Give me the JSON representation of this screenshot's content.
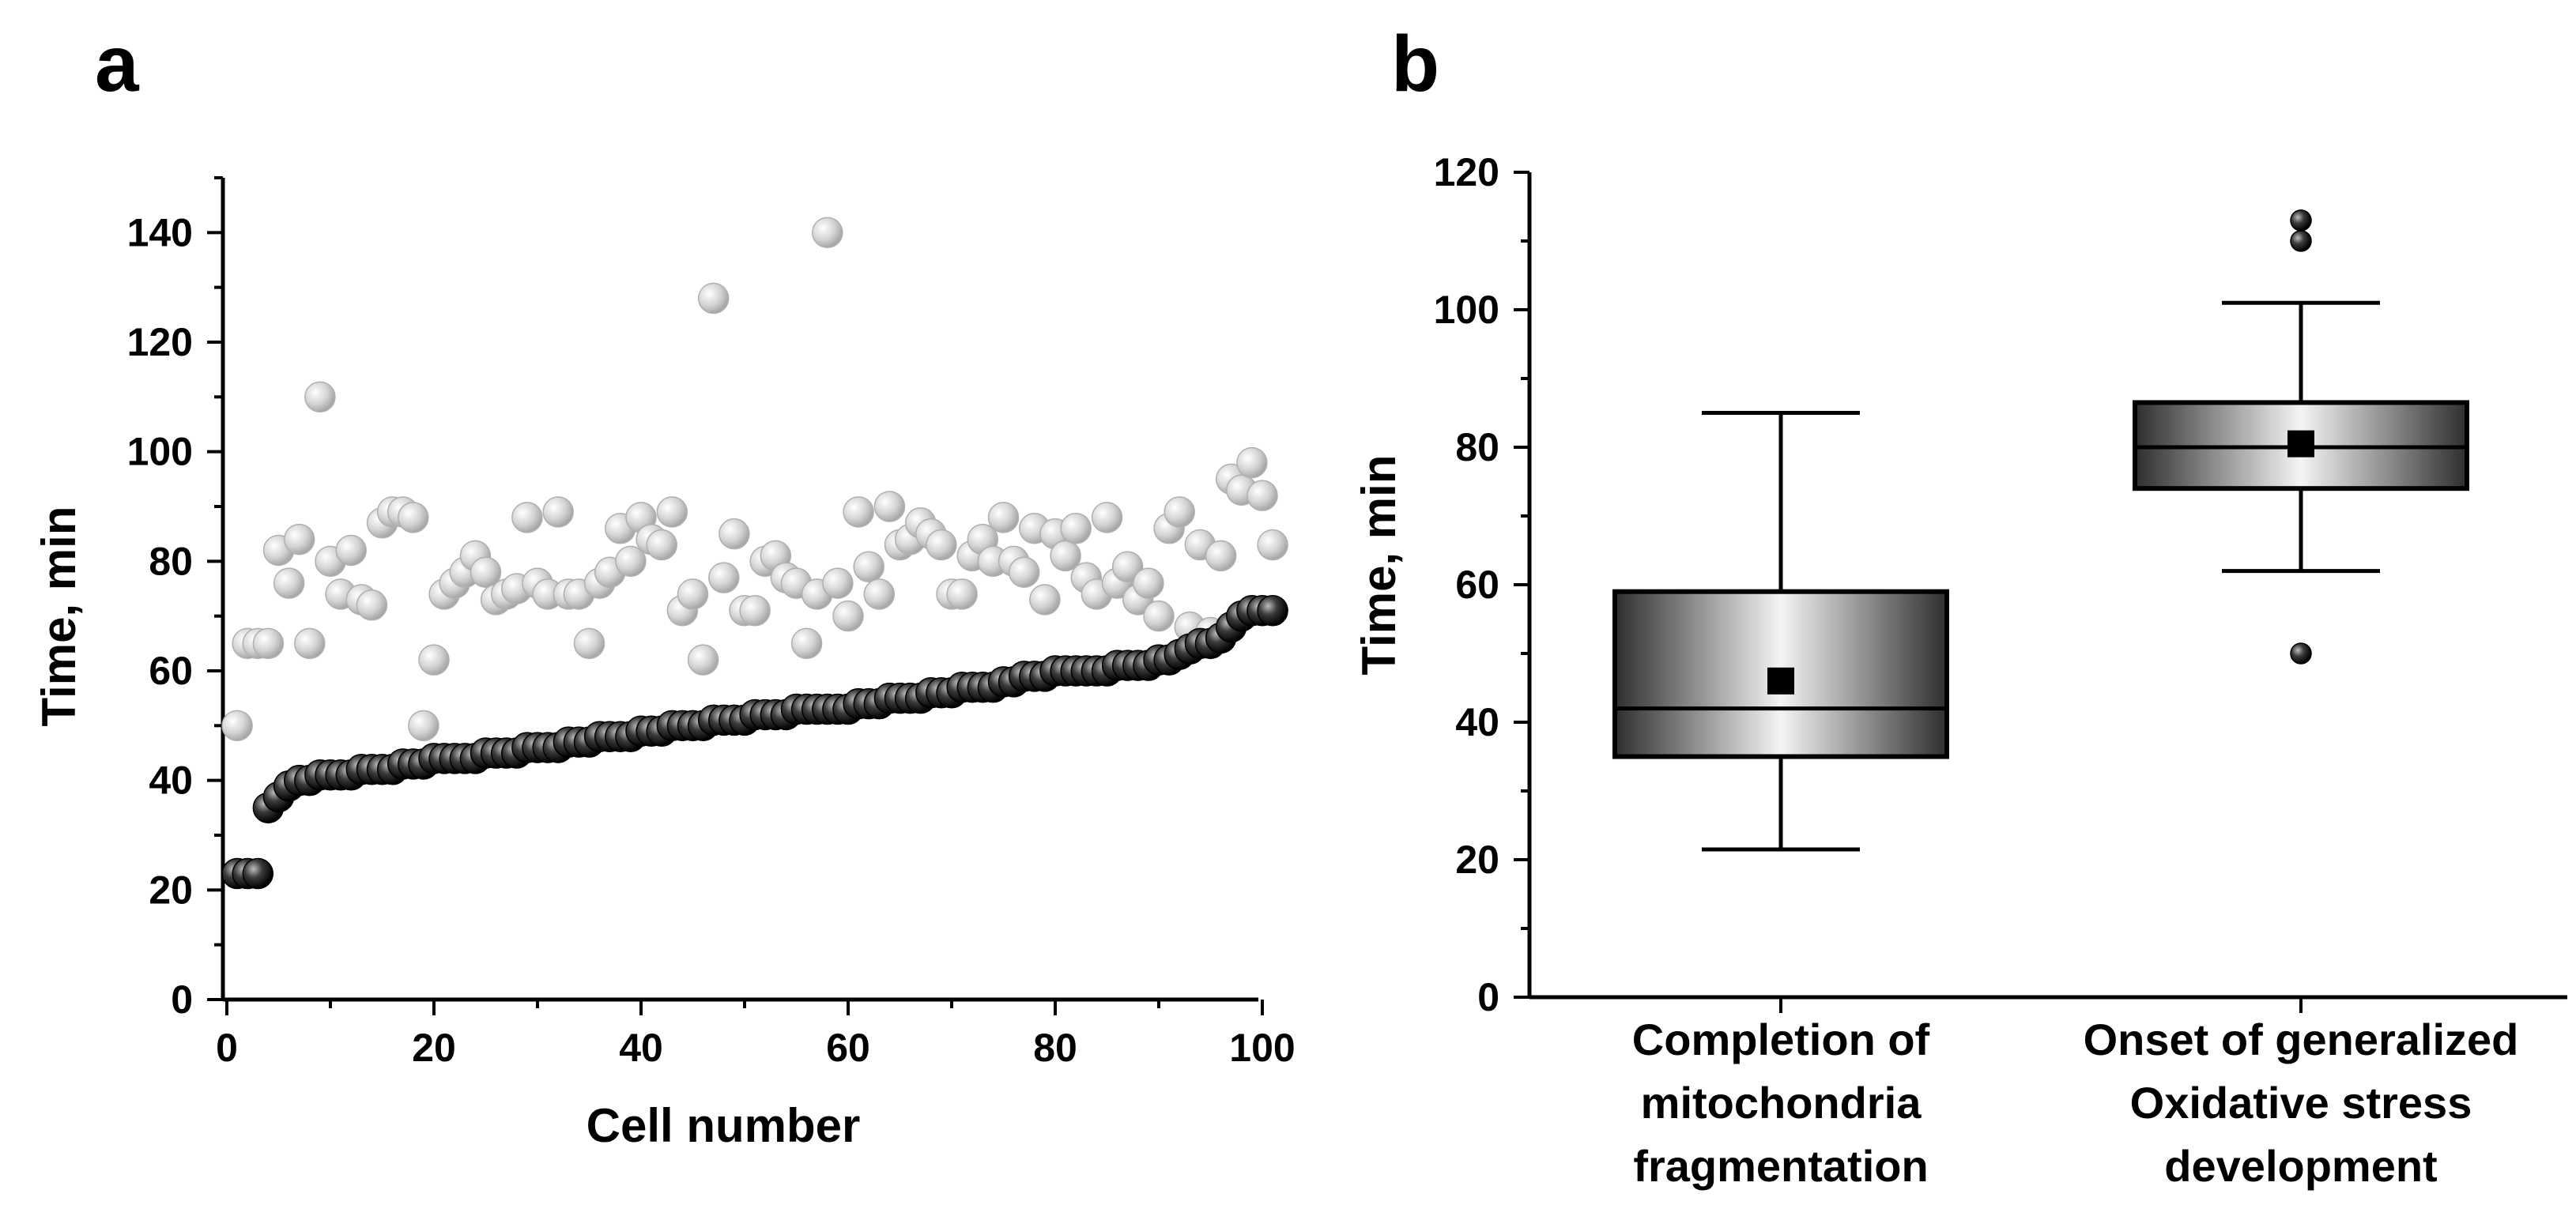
{
  "colors": {
    "sorted_series": "#222222",
    "unsorted_series": "#c8c8c8",
    "axis": "#000000",
    "box_dark": "#3a3a3a",
    "box_light": "#f2f2f2"
  },
  "panels": {
    "a": {
      "letter": "a"
    },
    "b": {
      "letter": "b"
    }
  },
  "chart_data": [
    {
      "type": "scatter",
      "panel": "a",
      "xlabel": "Cell number",
      "ylabel": "Time, min",
      "xlim": [
        0,
        100
      ],
      "ylim": [
        0,
        150
      ],
      "xticks": [
        0,
        20,
        40,
        60,
        80,
        100
      ],
      "yticks": [
        0,
        20,
        40,
        60,
        80,
        100,
        120,
        140
      ],
      "grid": false,
      "legend": "none",
      "series": [
        {
          "marker_color": "#c8c8c8",
          "points": [
            [
              1,
              50
            ],
            [
              2,
              65
            ],
            [
              3,
              65
            ],
            [
              4,
              65
            ],
            [
              5,
              82
            ],
            [
              6,
              76
            ],
            [
              7,
              84
            ],
            [
              8,
              65
            ],
            [
              9,
              110
            ],
            [
              10,
              80
            ],
            [
              11,
              74
            ],
            [
              12,
              82
            ],
            [
              13,
              73
            ],
            [
              14,
              72
            ],
            [
              15,
              87
            ],
            [
              16,
              89
            ],
            [
              17,
              89
            ],
            [
              18,
              88
            ],
            [
              19,
              50
            ],
            [
              20,
              62
            ],
            [
              21,
              74
            ],
            [
              22,
              76
            ],
            [
              23,
              78
            ],
            [
              24,
              81
            ],
            [
              25,
              78
            ],
            [
              26,
              73
            ],
            [
              27,
              74
            ],
            [
              28,
              75
            ],
            [
              29,
              88
            ],
            [
              30,
              76
            ],
            [
              31,
              74
            ],
            [
              32,
              89
            ],
            [
              33,
              74
            ],
            [
              34,
              74
            ],
            [
              35,
              65
            ],
            [
              36,
              76
            ],
            [
              37,
              78
            ],
            [
              38,
              86
            ],
            [
              39,
              80
            ],
            [
              40,
              88
            ],
            [
              41,
              84
            ],
            [
              42,
              83
            ],
            [
              43,
              89
            ],
            [
              44,
              71
            ],
            [
              45,
              74
            ],
            [
              46,
              62
            ],
            [
              47,
              128
            ],
            [
              48,
              77
            ],
            [
              49,
              85
            ],
            [
              50,
              71
            ],
            [
              51,
              71
            ],
            [
              52,
              80
            ],
            [
              53,
              81
            ],
            [
              54,
              77
            ],
            [
              55,
              76
            ],
            [
              56,
              65
            ],
            [
              57,
              74
            ],
            [
              58,
              140
            ],
            [
              59,
              76
            ],
            [
              60,
              70
            ],
            [
              61,
              89
            ],
            [
              62,
              79
            ],
            [
              63,
              74
            ],
            [
              64,
              90
            ],
            [
              65,
              83
            ],
            [
              66,
              84
            ],
            [
              67,
              87
            ],
            [
              68,
              85
            ],
            [
              69,
              83
            ],
            [
              70,
              74
            ],
            [
              71,
              74
            ],
            [
              72,
              81
            ],
            [
              73,
              84
            ],
            [
              74,
              80
            ],
            [
              75,
              88
            ],
            [
              76,
              80
            ],
            [
              77,
              78
            ],
            [
              78,
              86
            ],
            [
              79,
              73
            ],
            [
              80,
              85
            ],
            [
              81,
              81
            ],
            [
              82,
              86
            ],
            [
              83,
              77
            ],
            [
              84,
              74
            ],
            [
              85,
              88
            ],
            [
              86,
              76
            ],
            [
              87,
              79
            ],
            [
              88,
              73
            ],
            [
              89,
              76
            ],
            [
              90,
              70
            ],
            [
              91,
              86
            ],
            [
              92,
              89
            ],
            [
              93,
              68
            ],
            [
              94,
              83
            ],
            [
              95,
              67
            ],
            [
              96,
              81
            ],
            [
              97,
              95
            ],
            [
              98,
              93
            ],
            [
              99,
              98
            ],
            [
              100,
              92
            ],
            [
              101,
              83
            ]
          ]
        },
        {
          "marker_color": "#222222",
          "points": [
            [
              1,
              23
            ],
            [
              2,
              23
            ],
            [
              3,
              23
            ],
            [
              4,
              35
            ],
            [
              5,
              37
            ],
            [
              6,
              39
            ],
            [
              7,
              40
            ],
            [
              8,
              40
            ],
            [
              9,
              41
            ],
            [
              10,
              41
            ],
            [
              11,
              41
            ],
            [
              12,
              41
            ],
            [
              13,
              42
            ],
            [
              14,
              42
            ],
            [
              15,
              42
            ],
            [
              16,
              42
            ],
            [
              17,
              43
            ],
            [
              18,
              43
            ],
            [
              19,
              43
            ],
            [
              20,
              44
            ],
            [
              21,
              44
            ],
            [
              22,
              44
            ],
            [
              23,
              44
            ],
            [
              24,
              44
            ],
            [
              25,
              45
            ],
            [
              26,
              45
            ],
            [
              27,
              45
            ],
            [
              28,
              45
            ],
            [
              29,
              46
            ],
            [
              30,
              46
            ],
            [
              31,
              46
            ],
            [
              32,
              46
            ],
            [
              33,
              47
            ],
            [
              34,
              47
            ],
            [
              35,
              47
            ],
            [
              36,
              48
            ],
            [
              37,
              48
            ],
            [
              38,
              48
            ],
            [
              39,
              48
            ],
            [
              40,
              49
            ],
            [
              41,
              49
            ],
            [
              42,
              49
            ],
            [
              43,
              50
            ],
            [
              44,
              50
            ],
            [
              45,
              50
            ],
            [
              46,
              50
            ],
            [
              47,
              51
            ],
            [
              48,
              51
            ],
            [
              49,
              51
            ],
            [
              50,
              51
            ],
            [
              51,
              52
            ],
            [
              52,
              52
            ],
            [
              53,
              52
            ],
            [
              54,
              52
            ],
            [
              55,
              53
            ],
            [
              56,
              53
            ],
            [
              57,
              53
            ],
            [
              58,
              53
            ],
            [
              59,
              53
            ],
            [
              60,
              53
            ],
            [
              61,
              54
            ],
            [
              62,
              54
            ],
            [
              63,
              54
            ],
            [
              64,
              55
            ],
            [
              65,
              55
            ],
            [
              66,
              55
            ],
            [
              67,
              55
            ],
            [
              68,
              56
            ],
            [
              69,
              56
            ],
            [
              70,
              56
            ],
            [
              71,
              57
            ],
            [
              72,
              57
            ],
            [
              73,
              57
            ],
            [
              74,
              57
            ],
            [
              75,
              58
            ],
            [
              76,
              58
            ],
            [
              77,
              59
            ],
            [
              78,
              59
            ],
            [
              79,
              59
            ],
            [
              80,
              60
            ],
            [
              81,
              60
            ],
            [
              82,
              60
            ],
            [
              83,
              60
            ],
            [
              84,
              60
            ],
            [
              85,
              60
            ],
            [
              86,
              61
            ],
            [
              87,
              61
            ],
            [
              88,
              61
            ],
            [
              89,
              61
            ],
            [
              90,
              62
            ],
            [
              91,
              62
            ],
            [
              92,
              63
            ],
            [
              93,
              64
            ],
            [
              94,
              65
            ],
            [
              95,
              65
            ],
            [
              96,
              66
            ],
            [
              97,
              68
            ],
            [
              98,
              70
            ],
            [
              99,
              71
            ],
            [
              100,
              71
            ],
            [
              101,
              71
            ]
          ]
        }
      ]
    },
    {
      "type": "box",
      "panel": "b",
      "ylabel": "Time, min",
      "ylim": [
        0,
        120
      ],
      "yticks": [
        0,
        20,
        40,
        60,
        80,
        100,
        120
      ],
      "grid": false,
      "legend": "none",
      "categories": [
        [
          "Completion of",
          "mitochondria",
          "fragmentation"
        ],
        [
          "Onset of generalized",
          "Oxidative stress",
          "development"
        ]
      ],
      "boxes": [
        {
          "whisker_low": 21.5,
          "q1": 35,
          "median": 42,
          "mean": 46,
          "q3": 59,
          "whisker_high": 85,
          "outliers": []
        },
        {
          "whisker_low": 62,
          "q1": 74,
          "median": 80,
          "mean": 80.5,
          "q3": 86.5,
          "whisker_high": 101,
          "outliers": [
            50,
            110,
            113
          ]
        }
      ]
    }
  ]
}
